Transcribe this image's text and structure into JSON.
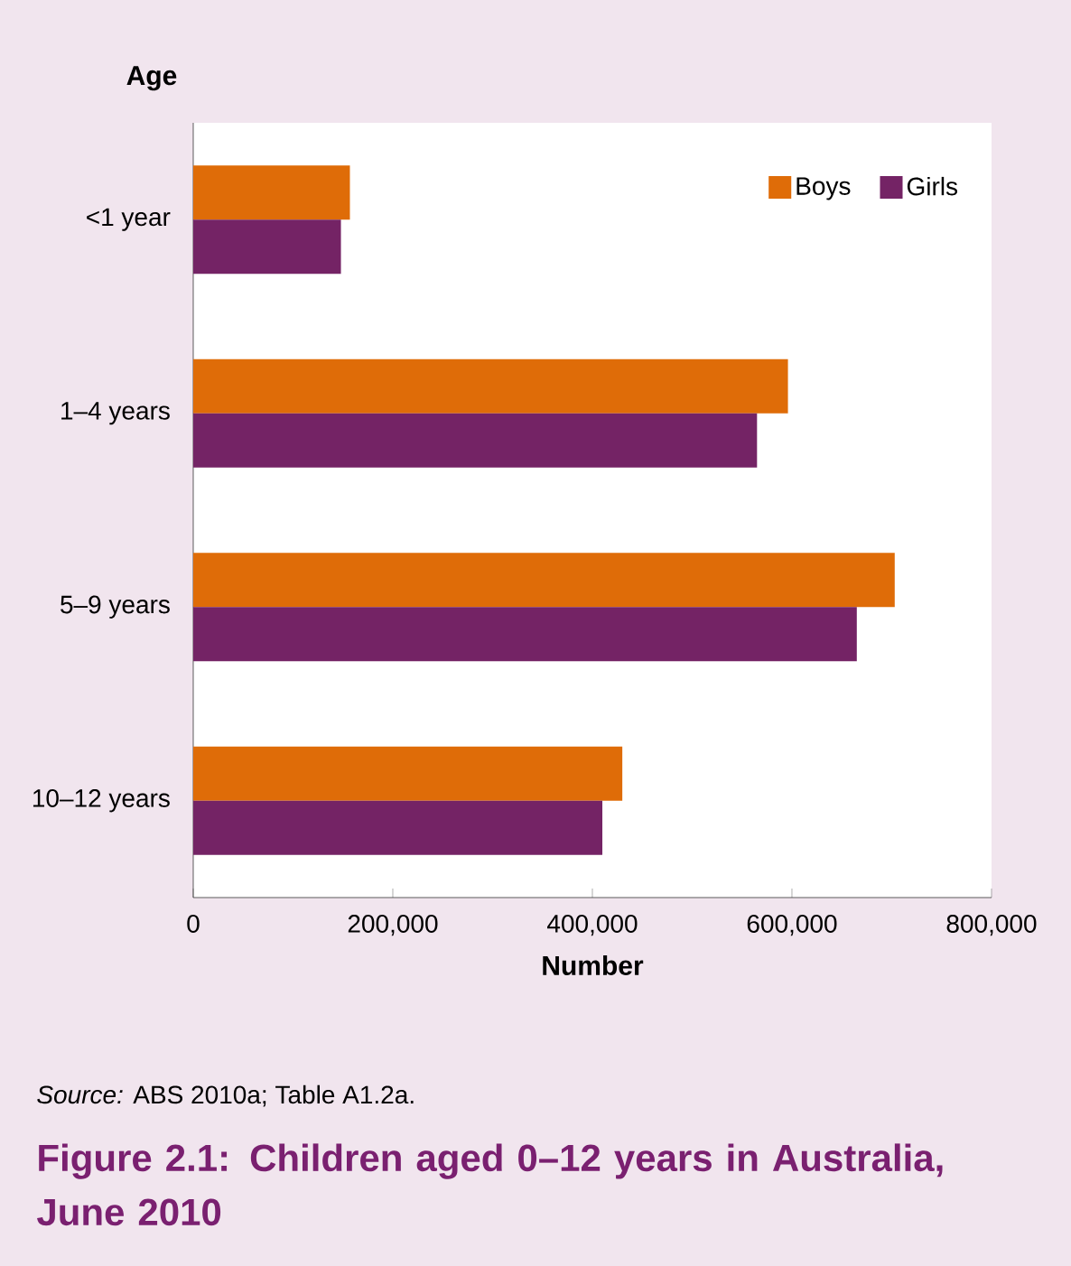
{
  "chart_data": {
    "type": "bar",
    "orientation": "horizontal",
    "title": "Figure 2.1: Children aged 0–12 years in Australia, June 2010",
    "xlabel": "Number",
    "ylabel": "Age",
    "categories": [
      "<1 year",
      "1–4 years",
      "5–9 years",
      "10–12 years"
    ],
    "series": [
      {
        "name": "Boys",
        "color": "#df6c08",
        "values": [
          157000,
          596000,
          703000,
          430000
        ]
      },
      {
        "name": "Girls",
        "color": "#742365",
        "values": [
          148000,
          565000,
          665000,
          410000
        ]
      }
    ],
    "xlim": [
      0,
      800000
    ],
    "xticks": [
      0,
      {
        "value": 200000,
        "label": "200,000"
      },
      {
        "value": 400000,
        "label": "400,000"
      },
      {
        "value": 600000,
        "label": "600,000"
      },
      {
        "value": 800000,
        "label": "800,000"
      }
    ],
    "legend": "top right",
    "annotations": [
      "*Source:* ABS 2010a; Table A1.2a."
    ]
  }
}
